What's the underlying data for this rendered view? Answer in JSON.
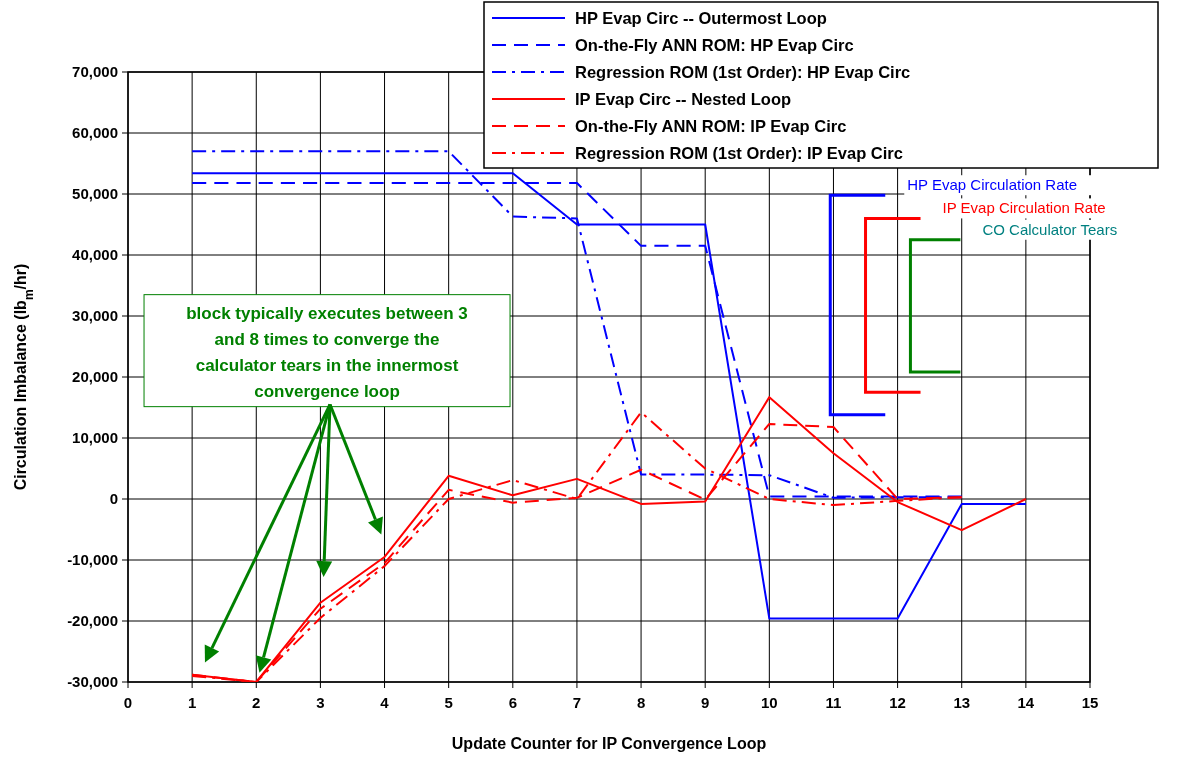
{
  "chart_data": {
    "type": "line",
    "xlabel": "Update Counter for IP Convergence Loop",
    "ylabel": "Circulation Imbalance (lb$_{m}$/hr)",
    "x": [
      1,
      2,
      3,
      4,
      5,
      6,
      7,
      8,
      9,
      10,
      11,
      12,
      13,
      14
    ],
    "xlim": [
      0,
      15
    ],
    "xticks": [
      0,
      1,
      2,
      3,
      4,
      5,
      6,
      7,
      8,
      9,
      10,
      11,
      12,
      13,
      14,
      15
    ],
    "ylim": [
      -30000,
      70000
    ],
    "yticks": [
      {
        "value": -30000,
        "label": "-30,000"
      },
      {
        "value": -20000,
        "label": "-20,000"
      },
      {
        "value": -10000,
        "label": "-10,000"
      },
      {
        "value": 0,
        "label": "0"
      },
      {
        "value": 10000,
        "label": "10,000"
      },
      {
        "value": 20000,
        "label": "20,000"
      },
      {
        "value": 30000,
        "label": "30,000"
      },
      {
        "value": 40000,
        "label": "40,000"
      },
      {
        "value": 50000,
        "label": "50,000"
      },
      {
        "value": 60000,
        "label": "60,000"
      },
      {
        "value": 70000,
        "label": "70,000"
      }
    ],
    "grid": true,
    "legend": "top right",
    "series": [
      {
        "name": "HP Evap Circ -- Outermost Loop",
        "color": "#0000ff",
        "line_style": "solid",
        "values": [
          53400,
          53400,
          53400,
          53400,
          53400,
          53400,
          45000,
          45000,
          45000,
          -19600,
          -19600,
          -19600,
          -800,
          -800
        ]
      },
      {
        "name": "On-the-Fly ANN ROM: HP Evap Circ",
        "color": "#0000ff",
        "line_style": "dashed",
        "values": [
          51800,
          51800,
          51800,
          51800,
          51800,
          51800,
          51800,
          41500,
          41500,
          400,
          400,
          400,
          400,
          null
        ]
      },
      {
        "name": "Regression ROM (1st Order): HP Evap Circ",
        "color": "#0000ff",
        "line_style": "dashdot",
        "values": [
          57000,
          57000,
          57000,
          57000,
          57000,
          46300,
          46000,
          4000,
          4000,
          3900,
          200,
          300,
          300,
          null
        ]
      },
      {
        "name": "IP Evap Circ -- Nested Loop",
        "color": "#ff0000",
        "line_style": "solid",
        "values": [
          -28800,
          -30000,
          -17000,
          -9500,
          3800,
          600,
          3300,
          -800,
          -400,
          16700,
          7500,
          -500,
          -5100,
          0
        ]
      },
      {
        "name": "On-the-Fly ANN ROM:  IP Evap Circ",
        "color": "#ff0000",
        "line_style": "dashed",
        "values": [
          -28800,
          -30000,
          -18000,
          -10500,
          1500,
          -600,
          200,
          4800,
          -100,
          12300,
          11800,
          0,
          300,
          null
        ]
      },
      {
        "name": "Regression ROM (1st Order):  IP Evap Circ",
        "color": "#ff0000",
        "line_style": "dashdot",
        "values": [
          -29000,
          -30000,
          -19500,
          -11000,
          0,
          3100,
          0,
          14200,
          5000,
          0,
          -1000,
          -300,
          300,
          null
        ]
      }
    ],
    "annotations": [
      "block typically executes between 3 and 8 times to converge the calculator tears in the innermost convergence loop",
      "HP Evap Circulation Rate",
      "IP Evap Circulation Rate",
      "CO Calculator Tears"
    ]
  }
}
